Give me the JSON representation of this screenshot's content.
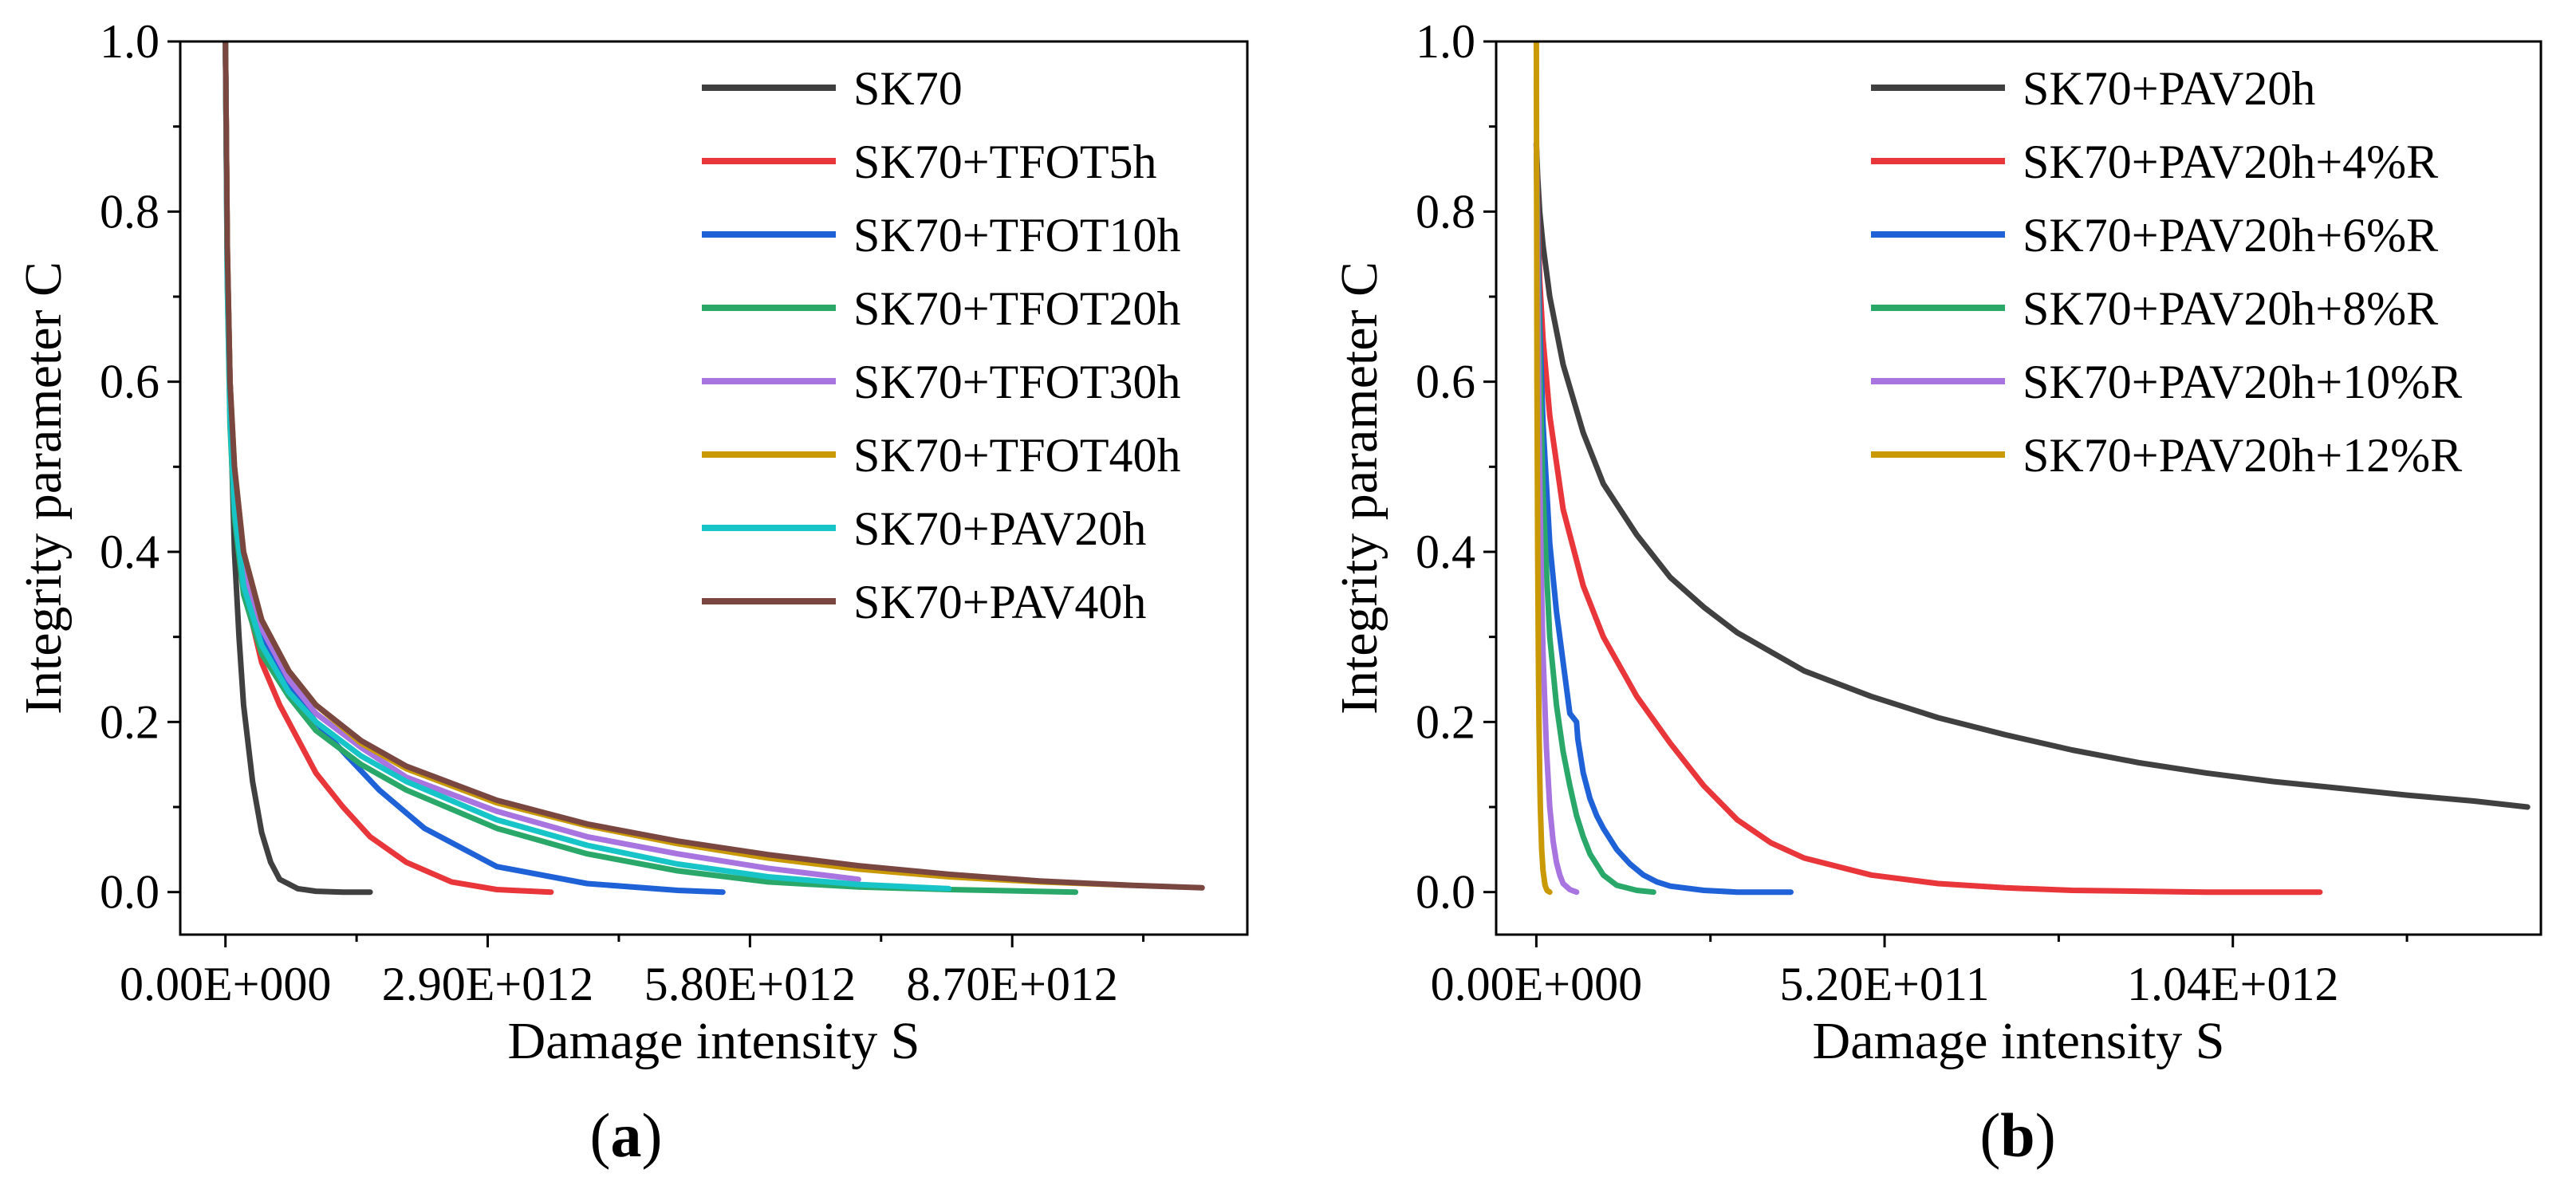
{
  "colors": {
    "SK70": "#404040",
    "TFOT5h": "#e8363a",
    "TFOT10h": "#1f62d8",
    "TFOT20h": "#2aa86a",
    "TFOT30h": "#a874e0",
    "TFOT40h": "#c99a06",
    "PAV20h": "#17c4c8",
    "PAV40h": "#7a4640",
    "R4": "#e8363a",
    "R6": "#1f62d8",
    "R8": "#2aa86a",
    "R10": "#a874e0",
    "R12": "#c99a06"
  },
  "chart_data": [
    {
      "panel": "a",
      "caption_open": "(",
      "caption_letter": "a",
      "caption_close": ")",
      "type": "line",
      "xlabel": "Damage intensity S",
      "ylabel": "Integrity parameter C",
      "xlim": [
        -500000000000.0,
        11300000000000.0
      ],
      "ylim": [
        -0.05,
        1.0
      ],
      "x_ticks": [
        0,
        2900000000000.0,
        5800000000000.0,
        8700000000000.0
      ],
      "x_tick_labels": [
        "0.00E+000",
        "2.90E+012",
        "5.80E+012",
        "8.70E+012"
      ],
      "y_ticks": [
        0.0,
        0.2,
        0.4,
        0.6,
        0.8,
        1.0
      ],
      "y_tick_labels": [
        "0.0",
        "0.2",
        "0.4",
        "0.6",
        "0.8",
        "1.0"
      ],
      "legend_position": "top-right",
      "series": [
        {
          "name": "SK70",
          "color_key": "SK70",
          "x": [
            0,
            20000000000.0,
            50000000000.0,
            100000000000.0,
            150000000000.0,
            200000000000.0,
            300000000000.0,
            400000000000.0,
            500000000000.0,
            600000000000.0,
            800000000000.0,
            1000000000000.0,
            1300000000000.0,
            1500000000000.0,
            1600000000000.0
          ],
          "y": [
            1.0,
            0.75,
            0.58,
            0.4,
            0.3,
            0.22,
            0.13,
            0.07,
            0.035,
            0.015,
            0.004,
            0.001,
            0.0,
            0.0,
            0.0
          ]
        },
        {
          "name": "SK70+TFOT5h",
          "color_key": "TFOT5h",
          "x": [
            0,
            20000000000.0,
            50000000000.0,
            100000000000.0,
            200000000000.0,
            400000000000.0,
            600000000000.0,
            800000000000.0,
            1000000000000.0,
            1300000000000.0,
            1600000000000.0,
            2000000000000.0,
            2500000000000.0,
            3000000000000.0,
            3600000000000.0
          ],
          "y": [
            1.0,
            0.75,
            0.6,
            0.46,
            0.36,
            0.27,
            0.22,
            0.18,
            0.14,
            0.1,
            0.065,
            0.035,
            0.012,
            0.003,
            0.0
          ]
        },
        {
          "name": "SK70+TFOT10h",
          "color_key": "TFOT10h",
          "x": [
            0,
            20000000000.0,
            50000000000.0,
            100000000000.0,
            200000000000.0,
            400000000000.0,
            700000000000.0,
            1000000000000.0,
            1300000000000.0,
            1700000000000.0,
            2200000000000.0,
            3000000000000.0,
            4000000000000.0,
            5000000000000.0,
            5500000000000.0
          ],
          "y": [
            1.0,
            0.75,
            0.6,
            0.47,
            0.38,
            0.3,
            0.24,
            0.2,
            0.165,
            0.12,
            0.075,
            0.03,
            0.01,
            0.002,
            0.0
          ]
        },
        {
          "name": "SK70+TFOT20h",
          "color_key": "TFOT20h",
          "x": [
            0,
            20000000000.0,
            50000000000.0,
            100000000000.0,
            200000000000.0,
            400000000000.0,
            700000000000.0,
            1000000000000.0,
            1500000000000.0,
            2000000000000.0,
            3000000000000.0,
            4000000000000.0,
            5000000000000.0,
            6000000000000.0,
            7000000000000.0,
            8000000000000.0,
            9400000000000.0
          ],
          "y": [
            1.0,
            0.72,
            0.55,
            0.44,
            0.35,
            0.28,
            0.23,
            0.19,
            0.15,
            0.12,
            0.075,
            0.045,
            0.025,
            0.012,
            0.006,
            0.003,
            0.0
          ]
        },
        {
          "name": "SK70+TFOT30h",
          "color_key": "TFOT30h",
          "x": [
            0,
            20000000000.0,
            50000000000.0,
            100000000000.0,
            200000000000.0,
            400000000000.0,
            700000000000.0,
            1000000000000.0,
            1500000000000.0,
            2000000000000.0,
            3000000000000.0,
            4000000000000.0,
            5000000000000.0,
            6000000000000.0,
            7000000000000.0
          ],
          "y": [
            1.0,
            0.74,
            0.58,
            0.47,
            0.38,
            0.31,
            0.25,
            0.21,
            0.17,
            0.135,
            0.095,
            0.065,
            0.045,
            0.028,
            0.015
          ]
        },
        {
          "name": "SK70+TFOT40h",
          "color_key": "TFOT40h",
          "x": [
            0,
            20000000000.0,
            50000000000.0,
            100000000000.0,
            200000000000.0,
            400000000000.0,
            700000000000.0,
            1000000000000.0,
            1500000000000.0,
            2000000000000.0,
            3000000000000.0,
            4000000000000.0,
            5000000000000.0,
            6000000000000.0,
            7000000000000.0,
            8000000000000.0,
            9000000000000.0,
            10000000000000.0
          ],
          "y": [
            1.0,
            0.76,
            0.6,
            0.5,
            0.4,
            0.32,
            0.26,
            0.22,
            0.175,
            0.145,
            0.105,
            0.078,
            0.057,
            0.04,
            0.027,
            0.018,
            0.012,
            0.008
          ]
        },
        {
          "name": "SK70+PAV20h",
          "color_key": "PAV20h",
          "x": [
            0,
            20000000000.0,
            50000000000.0,
            100000000000.0,
            200000000000.0,
            400000000000.0,
            700000000000.0,
            1000000000000.0,
            1500000000000.0,
            2000000000000.0,
            3000000000000.0,
            4000000000000.0,
            5000000000000.0,
            6000000000000.0,
            7000000000000.0,
            8000000000000.0
          ],
          "y": [
            1.0,
            0.72,
            0.56,
            0.45,
            0.36,
            0.29,
            0.235,
            0.2,
            0.16,
            0.13,
            0.085,
            0.055,
            0.033,
            0.018,
            0.009,
            0.004
          ]
        },
        {
          "name": "SK70+PAV40h",
          "color_key": "PAV40h",
          "x": [
            0,
            20000000000.0,
            50000000000.0,
            100000000000.0,
            200000000000.0,
            400000000000.0,
            700000000000.0,
            1000000000000.0,
            1500000000000.0,
            2000000000000.0,
            3000000000000.0,
            4000000000000.0,
            5000000000000.0,
            6000000000000.0,
            7000000000000.0,
            8000000000000.0,
            9000000000000.0,
            10000000000000.0,
            10800000000000.0
          ],
          "y": [
            1.0,
            0.76,
            0.6,
            0.5,
            0.4,
            0.32,
            0.26,
            0.22,
            0.178,
            0.148,
            0.108,
            0.08,
            0.06,
            0.044,
            0.031,
            0.021,
            0.013,
            0.008,
            0.005
          ]
        }
      ]
    },
    {
      "panel": "b",
      "caption_open": "(",
      "caption_letter": "b",
      "caption_close": ")",
      "type": "line",
      "xlabel": "Damage intensity S",
      "ylabel": "Integrity parameter C",
      "xlim": [
        -60000000000.0,
        1500000000000.0
      ],
      "ylim": [
        -0.05,
        1.0
      ],
      "x_ticks": [
        0,
        520000000000.0,
        1040000000000.0
      ],
      "x_tick_labels": [
        "0.00E+000",
        "5.20E+011",
        "1.04E+012"
      ],
      "y_ticks": [
        0.0,
        0.2,
        0.4,
        0.6,
        0.8,
        1.0
      ],
      "y_tick_labels": [
        "0.0",
        "0.2",
        "0.4",
        "0.6",
        "0.8",
        "1.0"
      ],
      "legend_position": "top-right",
      "series": [
        {
          "name": "SK70+PAV20h",
          "color_key": "PAV20h_b",
          "x": [
            0,
            2000000000.0,
            5000000000.0,
            10000000000.0,
            20000000000.0,
            40000000000.0,
            70000000000.0,
            100000000000.0,
            150000000000.0,
            200000000000.0,
            250000000000.0,
            300000000000.0,
            400000000000.0,
            500000000000.0,
            600000000000.0,
            700000000000.0,
            800000000000.0,
            900000000000.0,
            1000000000000.0,
            1100000000000.0,
            1200000000000.0,
            1300000000000.0,
            1400000000000.0,
            1480000000000.0
          ],
          "y": [
            0.88,
            0.84,
            0.8,
            0.76,
            0.7,
            0.62,
            0.54,
            0.48,
            0.42,
            0.37,
            0.335,
            0.305,
            0.26,
            0.23,
            0.205,
            0.185,
            0.167,
            0.152,
            0.14,
            0.13,
            0.122,
            0.114,
            0.107,
            0.1
          ]
        },
        {
          "name": "SK70+PAV20h+4%R",
          "color_key": "R4",
          "x": [
            0,
            2000000000.0,
            5000000000.0,
            10000000000.0,
            20000000000.0,
            40000000000.0,
            70000000000.0,
            100000000000.0,
            150000000000.0,
            200000000000.0,
            250000000000.0,
            300000000000.0,
            350000000000.0,
            400000000000.0,
            500000000000.0,
            600000000000.0,
            700000000000.0,
            800000000000.0,
            900000000000.0,
            1000000000000.0,
            1100000000000.0,
            1170000000000.0
          ],
          "y": [
            0.88,
            0.8,
            0.72,
            0.65,
            0.56,
            0.45,
            0.36,
            0.3,
            0.23,
            0.175,
            0.125,
            0.085,
            0.058,
            0.04,
            0.02,
            0.01,
            0.005,
            0.002,
            0.001,
            0.0,
            0.0,
            0.0
          ]
        },
        {
          "name": "SK70+PAV20h+6%R",
          "color_key": "R6",
          "x": [
            0,
            2000000000.0,
            5000000000.0,
            10000000000.0,
            20000000000.0,
            30000000000.0,
            40000000000.0,
            50000000000.0,
            60000000000.0,
            62000000000.0,
            70000000000.0,
            80000000000.0,
            90000000000.0,
            100000000000.0,
            120000000000.0,
            140000000000.0,
            160000000000.0,
            180000000000.0,
            200000000000.0,
            250000000000.0,
            300000000000.0,
            380000000000.0
          ],
          "y": [
            0.88,
            0.78,
            0.67,
            0.55,
            0.41,
            0.33,
            0.27,
            0.21,
            0.2,
            0.18,
            0.14,
            0.11,
            0.09,
            0.075,
            0.05,
            0.033,
            0.02,
            0.012,
            0.007,
            0.002,
            0.0,
            0.0
          ]
        },
        {
          "name": "SK70+PAV20h+8%R",
          "color_key": "R8",
          "x": [
            0,
            2000000000.0,
            5000000000.0,
            10000000000.0,
            15000000000.0,
            20000000000.0,
            30000000000.0,
            40000000000.0,
            50000000000.0,
            60000000000.0,
            70000000000.0,
            80000000000.0,
            100000000000.0,
            120000000000.0,
            150000000000.0,
            175000000000.0
          ],
          "y": [
            0.88,
            0.75,
            0.62,
            0.47,
            0.38,
            0.3,
            0.22,
            0.165,
            0.125,
            0.09,
            0.065,
            0.045,
            0.02,
            0.008,
            0.002,
            0.0
          ]
        },
        {
          "name": "SK70+PAV20h+10%R",
          "color_key": "R10",
          "x": [
            0,
            2000000000.0,
            4000000000.0,
            6000000000.0,
            8000000000.0,
            10000000000.0,
            15000000000.0,
            20000000000.0,
            25000000000.0,
            30000000000.0,
            35000000000.0,
            40000000000.0,
            50000000000.0,
            60000000000.0
          ],
          "y": [
            0.88,
            0.7,
            0.55,
            0.44,
            0.35,
            0.28,
            0.17,
            0.1,
            0.06,
            0.035,
            0.02,
            0.01,
            0.003,
            0.0
          ]
        },
        {
          "name": "SK70+PAV20h+12%R",
          "color_key": "R12",
          "x": [
            0,
            500000000.0,
            1000000000.0,
            2000000000.0,
            3000000000.0,
            4000000000.0,
            5000000000.0,
            6000000000.0,
            8000000000.0,
            10000000000.0,
            13000000000.0,
            16000000000.0,
            20000000000.0
          ],
          "y": [
            1.0,
            0.8,
            0.6,
            0.4,
            0.28,
            0.2,
            0.14,
            0.1,
            0.05,
            0.025,
            0.008,
            0.002,
            0.0
          ]
        }
      ]
    }
  ]
}
